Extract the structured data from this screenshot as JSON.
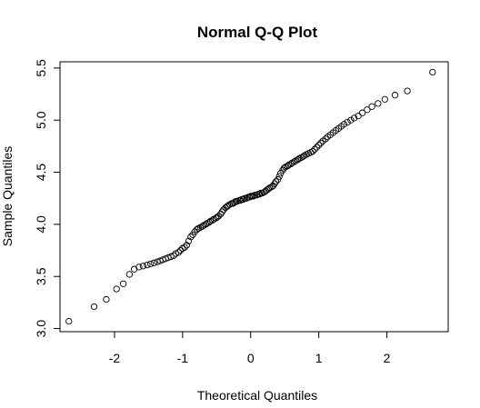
{
  "chart_data": {
    "type": "scatter",
    "title": "Normal Q-Q Plot",
    "xlabel": "Theoretical Quantiles",
    "ylabel": "Sample Quantiles",
    "xlim": [
      -2.8,
      2.9
    ],
    "ylim": [
      2.97,
      5.56
    ],
    "xticks": [
      -2,
      -1,
      0,
      1,
      2
    ],
    "xtick_labels": [
      "-2",
      "-1",
      "0",
      "1",
      "2"
    ],
    "yticks": [
      3.0,
      3.5,
      4.0,
      4.5,
      5.0,
      5.5
    ],
    "ytick_labels": [
      "3.0",
      "3.5",
      "4.0",
      "4.5",
      "5.0",
      "5.5"
    ],
    "grid": false,
    "legend": "none",
    "point_color": "#000000",
    "x": [
      -2.67,
      -2.3,
      -2.12,
      -1.97,
      -1.87,
      -1.78,
      -1.71,
      -1.64,
      -1.58,
      -1.52,
      -1.47,
      -1.42,
      -1.37,
      -1.33,
      -1.29,
      -1.25,
      -1.21,
      -1.17,
      -1.13,
      -1.1,
      -1.06,
      -1.03,
      -1.0,
      -0.97,
      -0.94,
      -0.91,
      -0.88,
      -0.85,
      -0.82,
      -0.79,
      -0.77,
      -0.74,
      -0.71,
      -0.69,
      -0.66,
      -0.64,
      -0.61,
      -0.59,
      -0.56,
      -0.54,
      -0.51,
      -0.49,
      -0.47,
      -0.44,
      -0.42,
      -0.4,
      -0.37,
      -0.35,
      -0.33,
      -0.31,
      -0.28,
      -0.26,
      -0.24,
      -0.22,
      -0.2,
      -0.17,
      -0.15,
      -0.13,
      -0.11,
      -0.09,
      -0.06,
      -0.04,
      -0.02,
      0.0,
      0.02,
      0.04,
      0.06,
      0.09,
      0.11,
      0.13,
      0.15,
      0.17,
      0.2,
      0.22,
      0.24,
      0.26,
      0.28,
      0.31,
      0.33,
      0.35,
      0.37,
      0.4,
      0.42,
      0.44,
      0.47,
      0.49,
      0.51,
      0.54,
      0.56,
      0.59,
      0.61,
      0.64,
      0.66,
      0.69,
      0.71,
      0.74,
      0.77,
      0.79,
      0.82,
      0.85,
      0.88,
      0.91,
      0.94,
      0.97,
      1.0,
      1.03,
      1.06,
      1.1,
      1.13,
      1.17,
      1.21,
      1.25,
      1.29,
      1.33,
      1.37,
      1.42,
      1.47,
      1.52,
      1.58,
      1.64,
      1.71,
      1.78,
      1.87,
      1.97,
      2.12,
      2.3,
      2.67
    ],
    "y": [
      3.07,
      3.21,
      3.28,
      3.38,
      3.43,
      3.52,
      3.57,
      3.59,
      3.6,
      3.61,
      3.62,
      3.63,
      3.64,
      3.65,
      3.66,
      3.67,
      3.68,
      3.69,
      3.7,
      3.72,
      3.73,
      3.75,
      3.77,
      3.78,
      3.8,
      3.84,
      3.88,
      3.9,
      3.93,
      3.95,
      3.96,
      3.97,
      3.98,
      3.99,
      4.0,
      4.01,
      4.02,
      4.03,
      4.04,
      4.05,
      4.06,
      4.07,
      4.08,
      4.1,
      4.12,
      4.14,
      4.16,
      4.17,
      4.18,
      4.19,
      4.2,
      4.2,
      4.21,
      4.22,
      4.22,
      4.23,
      4.23,
      4.24,
      4.24,
      4.25,
      4.25,
      4.26,
      4.26,
      4.27,
      4.27,
      4.27,
      4.28,
      4.28,
      4.29,
      4.29,
      4.3,
      4.3,
      4.31,
      4.32,
      4.33,
      4.34,
      4.35,
      4.36,
      4.37,
      4.39,
      4.41,
      4.43,
      4.46,
      4.49,
      4.52,
      4.54,
      4.55,
      4.56,
      4.57,
      4.58,
      4.59,
      4.6,
      4.61,
      4.62,
      4.63,
      4.64,
      4.65,
      4.66,
      4.67,
      4.68,
      4.69,
      4.7,
      4.72,
      4.74,
      4.76,
      4.78,
      4.8,
      4.82,
      4.84,
      4.86,
      4.88,
      4.9,
      4.92,
      4.94,
      4.96,
      4.98,
      5.0,
      5.02,
      5.04,
      5.07,
      5.1,
      5.13,
      5.16,
      5.2,
      5.24,
      5.28,
      5.46
    ]
  }
}
